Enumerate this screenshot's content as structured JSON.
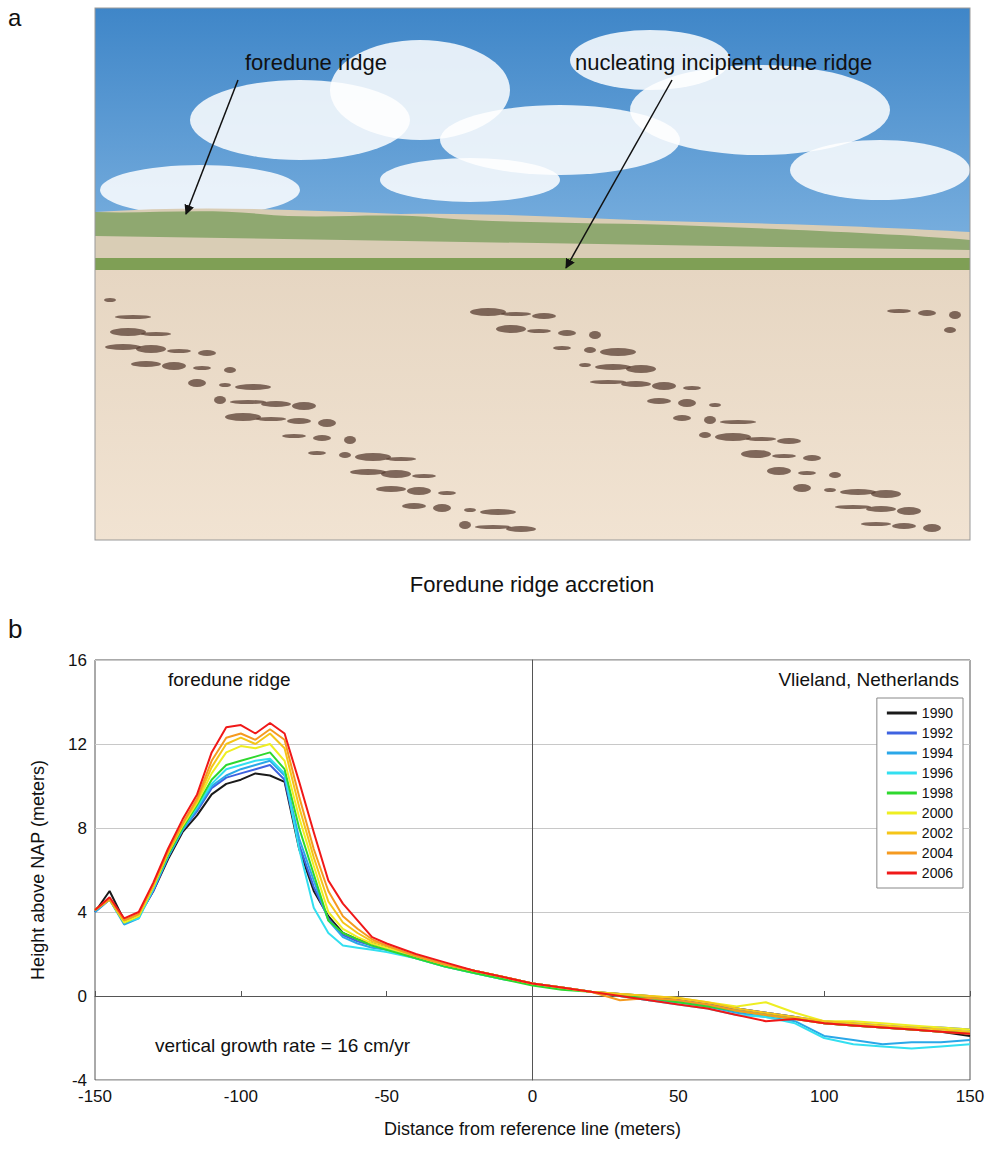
{
  "panel_a": {
    "letter": "a",
    "labels": [
      "foredune ridge",
      "nucleating incipient dune ridge"
    ],
    "caption": "Foredune ridge accretion"
  },
  "chart_data": {
    "type": "line",
    "panel_letter": "b",
    "annotations": [
      "foredune ridge",
      "Vlieland, Netherlands",
      "vertical growth rate = 16 cm/yr"
    ],
    "x_label": "Distance from reference line (meters)",
    "y_label": "Height above NAP (meters)",
    "xlim": [
      -150,
      150
    ],
    "xticks": [
      -150,
      -100,
      -50,
      0,
      50,
      100,
      150
    ],
    "ylim": [
      -4,
      16
    ],
    "yticks": [
      -4,
      0,
      4,
      8,
      12,
      16
    ],
    "grid": true,
    "legend": "top-right",
    "x": [
      -150,
      -145,
      -140,
      -135,
      -130,
      -125,
      -120,
      -115,
      -110,
      -105,
      -100,
      -95,
      -90,
      -85,
      -80,
      -75,
      -70,
      -65,
      -60,
      -55,
      -50,
      -40,
      -30,
      -20,
      -10,
      0,
      10,
      20,
      30,
      40,
      50,
      60,
      70,
      80,
      90,
      100,
      110,
      120,
      130,
      140,
      150
    ],
    "series": [
      {
        "name": "1990",
        "color": "#1a1a1a",
        "values": [
          4.0,
          5.0,
          3.6,
          3.8,
          5.0,
          6.5,
          7.8,
          8.6,
          9.6,
          10.1,
          10.3,
          10.6,
          10.5,
          10.2,
          7.0,
          5.0,
          3.8,
          3.0,
          2.7,
          2.5,
          2.3,
          1.9,
          1.5,
          1.2,
          0.9,
          0.6,
          0.4,
          0.2,
          0.1,
          0.0,
          -0.2,
          -0.4,
          -0.6,
          -0.8,
          -1.0,
          -1.3,
          -1.4,
          -1.5,
          -1.6,
          -1.7,
          -1.9
        ]
      },
      {
        "name": "1992",
        "color": "#3f63e0",
        "values": [
          4.0,
          4.6,
          3.5,
          3.8,
          5.0,
          6.6,
          7.9,
          8.8,
          9.9,
          10.4,
          10.6,
          10.8,
          11.0,
          10.3,
          7.2,
          5.2,
          3.7,
          2.9,
          2.6,
          2.4,
          2.2,
          1.9,
          1.5,
          1.2,
          0.9,
          0.6,
          0.4,
          0.2,
          0.1,
          -0.1,
          -0.2,
          -0.4,
          -0.6,
          -0.8,
          -1.0,
          -1.2,
          -1.3,
          -1.4,
          -1.5,
          -1.5,
          -1.6
        ]
      },
      {
        "name": "1994",
        "color": "#2aa7e8",
        "values": [
          4.0,
          4.6,
          3.4,
          3.7,
          5.1,
          6.6,
          7.9,
          8.9,
          10.0,
          10.5,
          10.8,
          11.0,
          11.2,
          10.5,
          7.5,
          5.5,
          3.6,
          2.8,
          2.5,
          2.3,
          2.2,
          1.8,
          1.4,
          1.1,
          0.8,
          0.6,
          0.4,
          0.2,
          0.0,
          -0.2,
          -0.3,
          -0.5,
          -0.8,
          -1.0,
          -1.2,
          -1.9,
          -2.1,
          -2.3,
          -2.2,
          -2.2,
          -2.1
        ]
      },
      {
        "name": "1996",
        "color": "#33dff0",
        "values": [
          4.1,
          4.6,
          3.5,
          3.7,
          5.1,
          6.7,
          8.0,
          9.0,
          10.1,
          10.8,
          11.0,
          11.2,
          11.3,
          10.6,
          7.0,
          4.2,
          3.0,
          2.4,
          2.3,
          2.2,
          2.1,
          1.8,
          1.4,
          1.1,
          0.8,
          0.6,
          0.4,
          0.2,
          0.0,
          -0.2,
          -0.4,
          -0.6,
          -0.9,
          -1.0,
          -1.3,
          -2.0,
          -2.3,
          -2.4,
          -2.5,
          -2.4,
          -2.3
        ]
      },
      {
        "name": "1998",
        "color": "#2ed82e",
        "values": [
          4.1,
          4.6,
          3.5,
          3.8,
          5.2,
          6.7,
          8.0,
          9.1,
          10.3,
          11.0,
          11.2,
          11.4,
          11.6,
          10.8,
          8.0,
          5.8,
          3.6,
          3.0,
          2.7,
          2.4,
          2.2,
          1.8,
          1.4,
          1.1,
          0.8,
          0.5,
          0.3,
          0.2,
          0.0,
          -0.1,
          -0.3,
          -0.5,
          -0.7,
          -0.9,
          -1.1,
          -1.3,
          -1.4,
          -1.5,
          -1.6,
          -1.7,
          -1.7
        ]
      },
      {
        "name": "2000",
        "color": "#eeee22",
        "values": [
          4.1,
          4.6,
          3.5,
          3.8,
          5.2,
          6.8,
          8.1,
          9.2,
          10.6,
          11.6,
          11.9,
          11.8,
          12.0,
          11.2,
          8.5,
          6.2,
          4.0,
          3.2,
          2.8,
          2.5,
          2.3,
          1.9,
          1.5,
          1.2,
          0.9,
          0.6,
          0.4,
          0.2,
          0.1,
          0.0,
          -0.1,
          -0.3,
          -0.5,
          -0.3,
          -0.8,
          -1.2,
          -1.2,
          -1.3,
          -1.4,
          -1.5,
          -1.6
        ]
      },
      {
        "name": "2002",
        "color": "#f5c518",
        "values": [
          4.1,
          4.6,
          3.6,
          3.9,
          5.3,
          6.8,
          8.2,
          9.3,
          10.9,
          12.0,
          12.3,
          12.0,
          12.5,
          11.8,
          9.0,
          6.6,
          4.5,
          3.5,
          3.0,
          2.6,
          2.4,
          1.9,
          1.5,
          1.2,
          0.9,
          0.6,
          0.4,
          0.2,
          0.1,
          0.0,
          -0.1,
          -0.3,
          -0.6,
          -0.8,
          -1.0,
          -1.2,
          -1.3,
          -1.4,
          -1.5,
          -1.6,
          -1.7
        ]
      },
      {
        "name": "2004",
        "color": "#f59a20",
        "values": [
          4.1,
          4.6,
          3.6,
          3.9,
          5.3,
          6.9,
          8.2,
          9.4,
          11.2,
          12.3,
          12.5,
          12.2,
          12.7,
          12.2,
          9.5,
          7.0,
          5.0,
          3.8,
          3.2,
          2.7,
          2.4,
          1.9,
          1.5,
          1.2,
          0.9,
          0.6,
          0.4,
          0.2,
          -0.2,
          -0.1,
          -0.2,
          -0.4,
          -0.7,
          -0.9,
          -1.1,
          -1.3,
          -1.4,
          -1.5,
          -1.6,
          -1.7,
          -1.8
        ]
      },
      {
        "name": "2006",
        "color": "#f01818",
        "values": [
          4.1,
          4.7,
          3.7,
          4.0,
          5.4,
          7.0,
          8.4,
          9.6,
          11.6,
          12.8,
          12.9,
          12.5,
          13.0,
          12.5,
          10.2,
          7.8,
          5.5,
          4.4,
          3.6,
          2.8,
          2.5,
          2.0,
          1.6,
          1.2,
          0.9,
          0.6,
          0.4,
          0.2,
          0.0,
          -0.2,
          -0.4,
          -0.6,
          -0.9,
          -1.2,
          -1.1,
          -1.3,
          -1.4,
          -1.5,
          -1.6,
          -1.7,
          -1.8
        ]
      }
    ]
  }
}
